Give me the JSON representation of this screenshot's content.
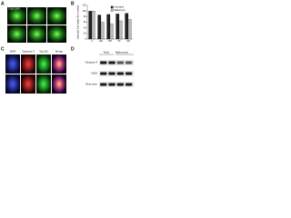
{
  "panel_labels": [
    "A",
    "B",
    "C",
    "D"
  ],
  "panel_a": {
    "image_label": "CD63 GFP"
  },
  "chart_data": {
    "type": "bar",
    "y_label": "Corrected fluid height (% of control)",
    "categories": [
      "0",
      "200",
      "250",
      "50",
      "100"
    ],
    "series": [
      {
        "name": "Untreated",
        "color": "#222222",
        "values": [
          100,
          86,
          88,
          90,
          92
        ]
      },
      {
        "name": "Bafilomycin",
        "color": "#bdbdbd",
        "values": [
          100,
          60,
          55,
          65,
          70
        ]
      }
    ],
    "ylim": [
      0,
      120
    ],
    "yticks": [
      0,
      20,
      40,
      60,
      80,
      100,
      120
    ]
  },
  "panel_c": {
    "columns": [
      "DAPI",
      "Glypican-3",
      "Tsg 101",
      "Merge"
    ]
  },
  "panel_d": {
    "groups": [
      "Tsiin1",
      "Bafilomycin"
    ],
    "rows": [
      "Glypican-3",
      "CD63",
      "Beta actin"
    ]
  }
}
